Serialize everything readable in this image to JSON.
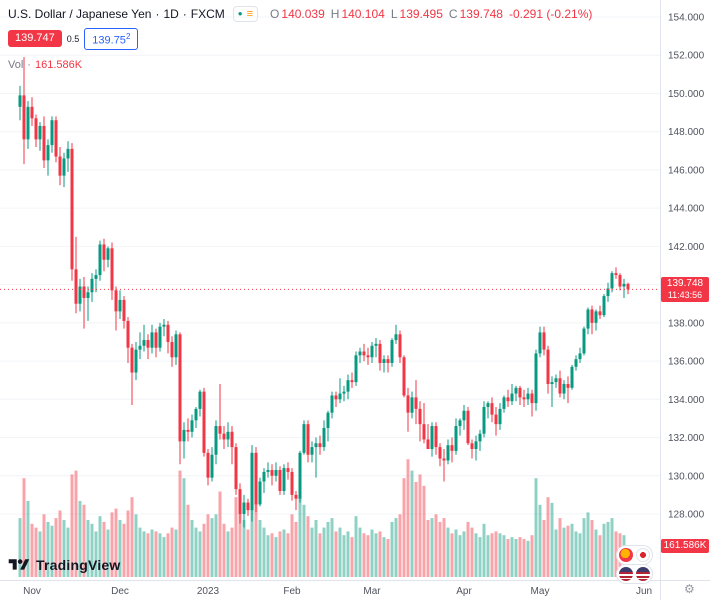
{
  "header": {
    "symbol": "U.S. Dollar / Japanese Yen",
    "sep": "·",
    "interval": "1D",
    "exchange": "FXCM",
    "ohlc": {
      "o_label": "O",
      "o_value": "140.039",
      "h_label": "H",
      "h_value": "140.104",
      "l_label": "L",
      "l_value": "139.495",
      "c_label": "C",
      "c_value": "139.748",
      "change": "-0.291 (-0.21%)"
    },
    "sell_price": "139.747",
    "spread": "0.5",
    "buy_price_main": "139.75",
    "buy_price_sup": "2",
    "vol_label": "Vol",
    "vol_sep": "·",
    "vol_value": "161.586K"
  },
  "price_axis": {
    "current_price": "139.748",
    "countdown": "11:43:56",
    "volume_badge": "161.586K"
  },
  "footer": {
    "logo_text": "TradingView",
    "gear_icon": "⚙"
  },
  "icons": {
    "status_dot": "●",
    "list": "≡"
  },
  "colors": {
    "up": "#089981",
    "down": "#f23645",
    "vol_up": "rgba(8,153,129,0.45)",
    "vol_down": "rgba(242,54,69,0.45)",
    "axis_text": "#50535e",
    "border": "#e0e3eb",
    "grid": "#f2f4f7",
    "buy_blue": "#2962ff"
  },
  "chart_data": {
    "type": "candlestick",
    "title": "U.S. Dollar / Japanese Yen",
    "interval": "1D",
    "exchange": "FXCM",
    "legend_position": "top-left",
    "grid": "faint-horizontal",
    "ylim": [
      127.0,
      154.5
    ],
    "y_ticks": [
      154,
      152,
      150,
      148,
      146,
      144,
      142,
      140,
      138,
      136,
      134,
      132,
      130,
      128
    ],
    "x_labels": [
      {
        "label": "Nov",
        "i": 3
      },
      {
        "label": "Dec",
        "i": 25
      },
      {
        "label": "2023",
        "i": 47
      },
      {
        "label": "Feb",
        "i": 68
      },
      {
        "label": "Mar",
        "i": 88
      },
      {
        "label": "Apr",
        "i": 111
      },
      {
        "label": "May",
        "i": 130
      },
      {
        "label": "Jun",
        "i": 156
      }
    ],
    "last": {
      "open": 140.039,
      "high": 140.104,
      "low": 139.495,
      "close": 139.748,
      "change": -0.291,
      "change_pct": -0.21,
      "volume_k": 161.586,
      "time_left": "11:43:56"
    },
    "candles_format": [
      "open",
      "high",
      "low",
      "close",
      "volume_k"
    ],
    "candles": [
      [
        149.3,
        150.4,
        148.6,
        149.9,
        310
      ],
      [
        149.9,
        151.9,
        146.3,
        147.6,
        520
      ],
      [
        147.6,
        149.6,
        147.1,
        149.3,
        400
      ],
      [
        149.3,
        149.8,
        148.3,
        148.7,
        280
      ],
      [
        148.7,
        148.9,
        147.2,
        147.6,
        260
      ],
      [
        147.6,
        148.5,
        147.0,
        148.3,
        240
      ],
      [
        148.3,
        148.8,
        146.1,
        146.5,
        330
      ],
      [
        146.5,
        147.6,
        145.7,
        147.3,
        290
      ],
      [
        147.3,
        148.8,
        146.9,
        148.6,
        270
      ],
      [
        148.6,
        148.8,
        146.4,
        146.7,
        310
      ],
      [
        146.7,
        147.2,
        145.2,
        145.7,
        350
      ],
      [
        145.7,
        146.9,
        145.1,
        146.6,
        300
      ],
      [
        146.6,
        147.5,
        145.9,
        147.1,
        260
      ],
      [
        147.1,
        147.4,
        140.2,
        140.8,
        540
      ],
      [
        140.8,
        142.5,
        138.5,
        139.0,
        560
      ],
      [
        139.0,
        140.3,
        138.6,
        139.9,
        400
      ],
      [
        139.9,
        140.4,
        137.7,
        139.3,
        380
      ],
      [
        139.3,
        139.9,
        138.1,
        139.6,
        300
      ],
      [
        139.6,
        140.6,
        139.1,
        140.3,
        280
      ],
      [
        140.3,
        140.8,
        139.6,
        140.5,
        240
      ],
      [
        140.5,
        142.3,
        140.2,
        142.1,
        320
      ],
      [
        142.1,
        142.4,
        140.7,
        141.3,
        290
      ],
      [
        141.3,
        142.0,
        140.9,
        141.9,
        250
      ],
      [
        141.9,
        142.2,
        139.2,
        139.7,
        340
      ],
      [
        139.7,
        139.9,
        137.6,
        138.6,
        360
      ],
      [
        138.6,
        139.7,
        138.2,
        139.2,
        300
      ],
      [
        139.2,
        139.4,
        137.7,
        138.1,
        280
      ],
      [
        138.1,
        138.3,
        135.9,
        136.7,
        350
      ],
      [
        136.7,
        136.9,
        133.7,
        135.4,
        420
      ],
      [
        135.4,
        137.0,
        135.0,
        136.6,
        330
      ],
      [
        136.6,
        137.5,
        136.1,
        136.8,
        260
      ],
      [
        136.8,
        137.9,
        136.5,
        137.1,
        240
      ],
      [
        137.1,
        137.4,
        136.1,
        136.7,
        230
      ],
      [
        136.7,
        137.9,
        136.4,
        137.5,
        250
      ],
      [
        137.5,
        137.7,
        136.2,
        136.7,
        240
      ],
      [
        136.7,
        138.0,
        136.5,
        137.8,
        230
      ],
      [
        137.8,
        138.2,
        137.3,
        137.9,
        210
      ],
      [
        137.9,
        138.1,
        136.4,
        137.0,
        230
      ],
      [
        137.0,
        137.3,
        135.7,
        136.2,
        260
      ],
      [
        136.2,
        137.6,
        135.8,
        137.4,
        250
      ],
      [
        137.4,
        137.5,
        130.6,
        131.8,
        560
      ],
      [
        131.8,
        132.8,
        130.9,
        132.4,
        520
      ],
      [
        132.4,
        133.0,
        131.8,
        132.3,
        380
      ],
      [
        132.3,
        133.2,
        132.0,
        132.9,
        300
      ],
      [
        132.9,
        133.6,
        132.5,
        133.5,
        260
      ],
      [
        133.5,
        134.5,
        133.1,
        134.4,
        240
      ],
      [
        134.4,
        134.6,
        131.0,
        131.2,
        280
      ],
      [
        131.2,
        131.4,
        129.5,
        129.9,
        330
      ],
      [
        129.9,
        131.5,
        129.7,
        131.1,
        310
      ],
      [
        131.1,
        132.9,
        130.6,
        132.6,
        330
      ],
      [
        132.6,
        134.8,
        131.9,
        132.2,
        450
      ],
      [
        132.2,
        132.6,
        131.4,
        131.9,
        280
      ],
      [
        131.9,
        132.8,
        131.5,
        132.3,
        240
      ],
      [
        132.3,
        132.6,
        130.6,
        131.5,
        260
      ],
      [
        131.5,
        131.7,
        129.0,
        129.3,
        420
      ],
      [
        129.3,
        129.6,
        127.5,
        128.0,
        460
      ],
      [
        128.0,
        129.0,
        127.3,
        128.6,
        300
      ],
      [
        128.6,
        128.8,
        127.9,
        128.2,
        250
      ],
      [
        128.2,
        131.6,
        127.6,
        131.2,
        520
      ],
      [
        131.2,
        131.5,
        128.1,
        128.5,
        480
      ],
      [
        128.5,
        129.9,
        128.4,
        129.7,
        300
      ],
      [
        129.7,
        130.4,
        129.1,
        130.2,
        260
      ],
      [
        130.2,
        130.7,
        129.9,
        130.3,
        220
      ],
      [
        130.3,
        130.6,
        129.5,
        130.0,
        230
      ],
      [
        130.0,
        130.7,
        129.7,
        130.3,
        210
      ],
      [
        130.3,
        130.5,
        129.0,
        129.2,
        240
      ],
      [
        129.2,
        130.6,
        129.0,
        130.4,
        250
      ],
      [
        130.4,
        130.7,
        129.8,
        130.2,
        230
      ],
      [
        130.2,
        130.4,
        128.7,
        129.0,
        330
      ],
      [
        129.0,
        129.2,
        128.2,
        128.8,
        290
      ],
      [
        128.8,
        131.3,
        128.6,
        131.2,
        480
      ],
      [
        131.2,
        132.9,
        131.1,
        132.7,
        380
      ],
      [
        132.7,
        132.9,
        130.7,
        131.1,
        320
      ],
      [
        131.1,
        131.8,
        130.7,
        131.5,
        260
      ],
      [
        131.5,
        132.0,
        129.9,
        131.7,
        300
      ],
      [
        131.7,
        132.1,
        131.1,
        131.5,
        230
      ],
      [
        131.5,
        132.9,
        131.3,
        132.5,
        260
      ],
      [
        132.5,
        133.4,
        131.8,
        133.3,
        290
      ],
      [
        133.3,
        134.4,
        133.0,
        134.2,
        310
      ],
      [
        134.2,
        134.4,
        133.6,
        134.0,
        240
      ],
      [
        134.0,
        135.1,
        133.8,
        134.3,
        260
      ],
      [
        134.3,
        134.7,
        133.9,
        134.4,
        220
      ],
      [
        134.4,
        135.3,
        134.0,
        135.0,
        240
      ],
      [
        135.0,
        135.4,
        134.6,
        134.9,
        210
      ],
      [
        134.9,
        136.5,
        134.7,
        136.3,
        320
      ],
      [
        136.3,
        136.7,
        135.9,
        136.5,
        260
      ],
      [
        136.5,
        136.9,
        136.0,
        136.3,
        230
      ],
      [
        136.3,
        136.7,
        135.8,
        136.2,
        220
      ],
      [
        136.2,
        137.0,
        135.9,
        136.8,
        250
      ],
      [
        136.8,
        137.2,
        136.2,
        136.9,
        230
      ],
      [
        136.9,
        137.1,
        135.5,
        135.9,
        240
      ],
      [
        135.9,
        136.3,
        135.4,
        136.1,
        210
      ],
      [
        136.1,
        136.3,
        135.4,
        135.9,
        200
      ],
      [
        135.9,
        137.2,
        135.7,
        137.1,
        290
      ],
      [
        137.1,
        137.9,
        136.9,
        137.4,
        310
      ],
      [
        137.4,
        137.6,
        135.9,
        136.2,
        330
      ],
      [
        136.2,
        136.3,
        134.1,
        134.2,
        520
      ],
      [
        134.2,
        134.6,
        132.3,
        133.3,
        620
      ],
      [
        133.3,
        134.4,
        133.0,
        134.1,
        560
      ],
      [
        134.1,
        135.0,
        132.7,
        133.5,
        500
      ],
      [
        133.5,
        133.9,
        131.8,
        132.7,
        540
      ],
      [
        132.7,
        133.8,
        131.7,
        131.9,
        480
      ],
      [
        131.9,
        132.7,
        131.4,
        131.4,
        300
      ],
      [
        131.4,
        132.8,
        131.0,
        132.6,
        310
      ],
      [
        132.6,
        132.8,
        131.1,
        131.5,
        330
      ],
      [
        131.5,
        131.7,
        130.5,
        130.9,
        290
      ],
      [
        130.9,
        131.4,
        129.7,
        130.8,
        310
      ],
      [
        130.8,
        131.9,
        130.6,
        131.6,
        260
      ],
      [
        131.6,
        132.0,
        130.7,
        131.3,
        230
      ],
      [
        131.3,
        133.0,
        131.1,
        132.6,
        250
      ],
      [
        132.6,
        133.0,
        132.1,
        132.9,
        220
      ],
      [
        132.9,
        133.7,
        132.4,
        133.4,
        240
      ],
      [
        133.4,
        133.6,
        131.6,
        131.7,
        290
      ],
      [
        131.7,
        131.9,
        130.9,
        131.4,
        260
      ],
      [
        131.4,
        132.1,
        130.8,
        131.8,
        230
      ],
      [
        131.8,
        132.4,
        131.3,
        132.2,
        210
      ],
      [
        132.2,
        133.9,
        132.0,
        133.6,
        280
      ],
      [
        133.6,
        133.9,
        133.0,
        133.8,
        220
      ],
      [
        133.8,
        134.1,
        132.8,
        133.2,
        230
      ],
      [
        133.2,
        133.6,
        132.1,
        132.7,
        240
      ],
      [
        132.7,
        133.8,
        132.4,
        133.5,
        230
      ],
      [
        133.5,
        134.2,
        133.3,
        134.1,
        220
      ],
      [
        134.1,
        134.5,
        133.6,
        133.9,
        200
      ],
      [
        133.9,
        134.8,
        133.7,
        134.3,
        210
      ],
      [
        134.3,
        134.7,
        133.9,
        134.6,
        200
      ],
      [
        134.6,
        134.7,
        133.7,
        134.1,
        210
      ],
      [
        134.1,
        134.5,
        133.6,
        134.0,
        200
      ],
      [
        134.0,
        134.6,
        133.7,
        134.3,
        190
      ],
      [
        134.3,
        134.5,
        133.1,
        133.8,
        220
      ],
      [
        133.8,
        136.6,
        133.4,
        136.4,
        520
      ],
      [
        136.4,
        137.8,
        136.2,
        137.5,
        380
      ],
      [
        137.5,
        137.8,
        136.3,
        136.6,
        300
      ],
      [
        136.6,
        136.8,
        134.3,
        134.8,
        420
      ],
      [
        134.8,
        135.2,
        133.6,
        134.9,
        390
      ],
      [
        134.9,
        135.3,
        134.6,
        135.1,
        250
      ],
      [
        135.1,
        135.5,
        134.1,
        134.3,
        310
      ],
      [
        134.3,
        135.0,
        134.0,
        134.8,
        260
      ],
      [
        134.8,
        135.2,
        133.8,
        134.6,
        270
      ],
      [
        134.6,
        135.8,
        134.5,
        135.7,
        280
      ],
      [
        135.7,
        136.3,
        135.5,
        136.1,
        240
      ],
      [
        136.1,
        136.7,
        135.9,
        136.4,
        230
      ],
      [
        136.4,
        137.8,
        136.3,
        137.7,
        310
      ],
      [
        137.7,
        138.8,
        137.4,
        138.7,
        340
      ],
      [
        138.7,
        138.9,
        137.4,
        138.0,
        300
      ],
      [
        138.0,
        138.7,
        137.6,
        138.6,
        250
      ],
      [
        138.6,
        138.9,
        138.2,
        138.4,
        220
      ],
      [
        138.4,
        139.5,
        138.3,
        139.4,
        280
      ],
      [
        139.4,
        140.1,
        139.1,
        139.8,
        290
      ],
      [
        139.8,
        140.7,
        139.6,
        140.6,
        310
      ],
      [
        140.6,
        140.9,
        140.3,
        140.5,
        240
      ],
      [
        140.5,
        140.6,
        139.7,
        139.9,
        230
      ],
      [
        139.9,
        140.3,
        139.3,
        140.04,
        220
      ],
      [
        140.039,
        140.104,
        139.495,
        139.748,
        161.586
      ]
    ]
  }
}
